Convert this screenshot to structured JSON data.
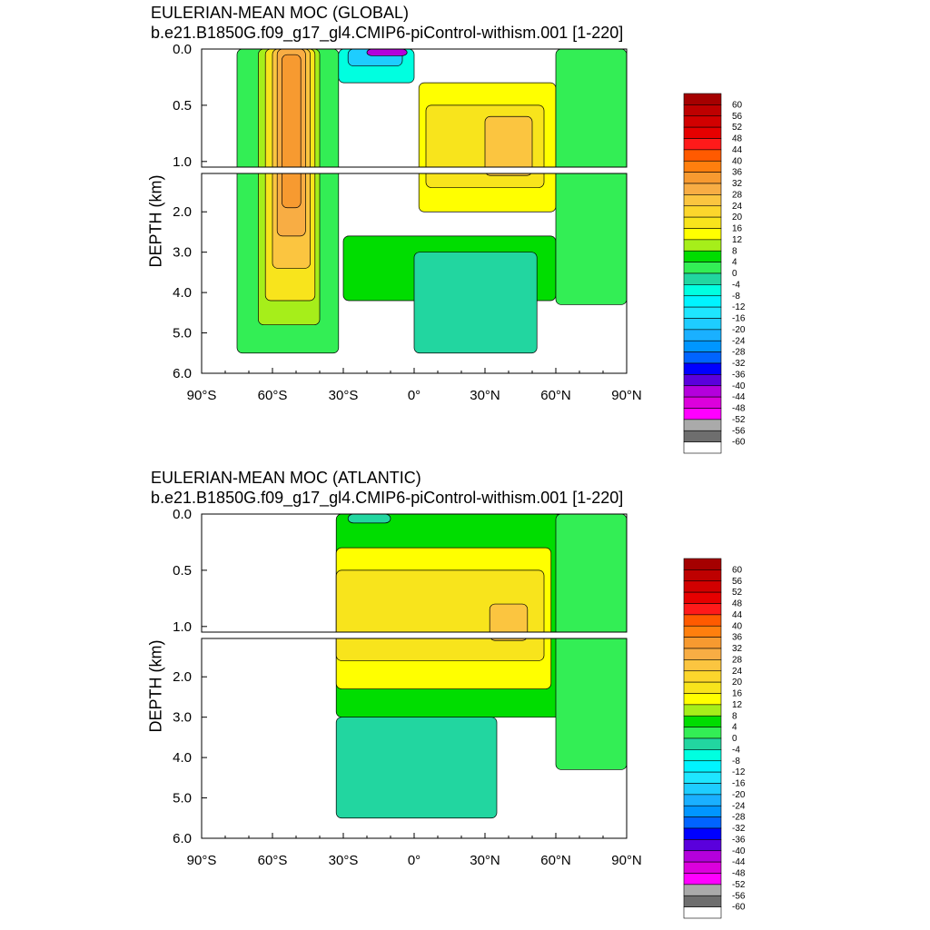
{
  "chart_data": [
    {
      "type": "heatmap",
      "title": "EULERIAN-MEAN MOC (GLOBAL)",
      "subtitle": "b.e21.B1850G.f09_g17_gl4.CMIP6-piControl-withism.001 [1-220]",
      "xlabel": "",
      "ylabel": "DEPTH (km)",
      "x_ticks": [
        "90°S",
        "60°S",
        "30°S",
        "0°",
        "30°N",
        "60°N",
        "90°N"
      ],
      "y_ticks_top": [
        "0.0",
        "0.5",
        "1.0"
      ],
      "y_ticks_bottom": [
        "2.0",
        "3.0",
        "4.0",
        "5.0",
        "6.0"
      ],
      "xlim": [
        -90,
        90
      ],
      "ylim_top": [
        0,
        1.05
      ],
      "ylim_bottom": [
        1.05,
        6.0
      ],
      "grid": false,
      "colorbar_levels": [
        60,
        56,
        52,
        48,
        44,
        40,
        36,
        32,
        28,
        24,
        20,
        16,
        12,
        8,
        4,
        0,
        -4,
        -8,
        -12,
        -16,
        -20,
        -24,
        -28,
        -32,
        -36,
        -40,
        -44,
        -48,
        -52,
        -56,
        -60
      ],
      "regions": [
        {
          "lat": [
            -75,
            -32
          ],
          "depth": [
            0,
            5.5
          ],
          "value": 2
        },
        {
          "lat": [
            -66,
            -40
          ],
          "depth": [
            0.0,
            4.8
          ],
          "value": 8
        },
        {
          "lat": [
            -63,
            -42
          ],
          "depth": [
            0.0,
            4.2
          ],
          "value": 16
        },
        {
          "lat": [
            -60,
            -44
          ],
          "depth": [
            0.0,
            3.4
          ],
          "value": 24
        },
        {
          "lat": [
            -58,
            -46
          ],
          "depth": [
            0.0,
            2.6
          ],
          "value": 30
        },
        {
          "lat": [
            -56,
            -48
          ],
          "depth": [
            0.05,
            1.9
          ],
          "value": 34
        },
        {
          "lat": [
            -32,
            0
          ],
          "depth": [
            0.0,
            0.3
          ],
          "value": -6
        },
        {
          "lat": [
            -28,
            -5
          ],
          "depth": [
            0.0,
            0.15
          ],
          "value": -20
        },
        {
          "lat": [
            -20,
            -3
          ],
          "depth": [
            0.0,
            0.06
          ],
          "value": -44
        },
        {
          "lat": [
            2,
            60
          ],
          "depth": [
            0.3,
            2.0
          ],
          "value": 12
        },
        {
          "lat": [
            5,
            55
          ],
          "depth": [
            0.5,
            1.4
          ],
          "value": 18
        },
        {
          "lat": [
            30,
            50
          ],
          "depth": [
            0.6,
            1.1
          ],
          "value": 24
        },
        {
          "lat": [
            -30,
            60
          ],
          "depth": [
            2.6,
            4.2
          ],
          "value": 6
        },
        {
          "lat": [
            0,
            52
          ],
          "depth": [
            3.0,
            5.5
          ],
          "value": -3
        },
        {
          "lat": [
            60,
            90
          ],
          "depth": [
            0.0,
            4.3
          ],
          "value": 2
        }
      ]
    },
    {
      "type": "heatmap",
      "title": "EULERIAN-MEAN MOC (ATLANTIC)",
      "subtitle": "b.e21.B1850G.f09_g17_gl4.CMIP6-piControl-withism.001 [1-220]",
      "xlabel": "",
      "ylabel": "DEPTH (km)",
      "x_ticks": [
        "90°S",
        "60°S",
        "30°S",
        "0°",
        "30°N",
        "60°N",
        "90°N"
      ],
      "y_ticks_top": [
        "0.0",
        "0.5",
        "1.0"
      ],
      "y_ticks_bottom": [
        "2.0",
        "3.0",
        "4.0",
        "5.0",
        "6.0"
      ],
      "xlim": [
        -90,
        90
      ],
      "ylim_top": [
        0,
        1.05
      ],
      "ylim_bottom": [
        1.05,
        6.0
      ],
      "grid": false,
      "colorbar_levels": [
        60,
        56,
        52,
        48,
        44,
        40,
        36,
        32,
        28,
        24,
        20,
        16,
        12,
        8,
        4,
        0,
        -4,
        -8,
        -12,
        -16,
        -20,
        -24,
        -28,
        -32,
        -36,
        -40,
        -44,
        -48,
        -52,
        -56,
        -60
      ],
      "regions": [
        {
          "lat": [
            -33,
            62
          ],
          "depth": [
            0.0,
            3.0
          ],
          "value": 6
        },
        {
          "lat": [
            -33,
            58
          ],
          "depth": [
            0.3,
            2.3
          ],
          "value": 12
        },
        {
          "lat": [
            -33,
            55
          ],
          "depth": [
            0.5,
            1.6
          ],
          "value": 18
        },
        {
          "lat": [
            32,
            48
          ],
          "depth": [
            0.8,
            1.1
          ],
          "value": 24
        },
        {
          "lat": [
            -28,
            -10
          ],
          "depth": [
            0.0,
            0.08
          ],
          "value": -4
        },
        {
          "lat": [
            -33,
            35
          ],
          "depth": [
            3.0,
            5.5
          ],
          "value": -3
        },
        {
          "lat": [
            60,
            90
          ],
          "depth": [
            0.0,
            4.3
          ],
          "value": 2
        }
      ]
    }
  ]
}
